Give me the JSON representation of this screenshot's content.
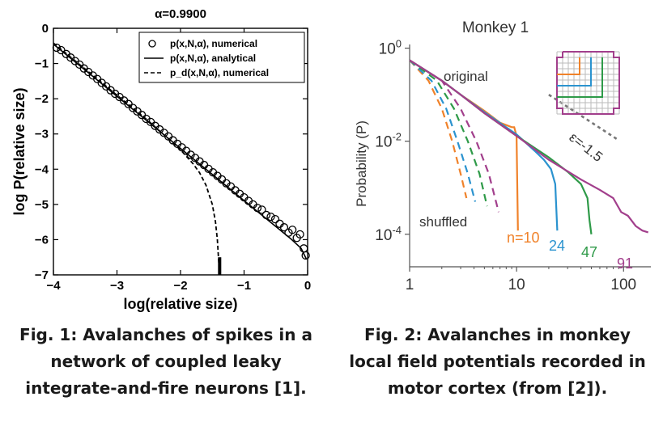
{
  "fig1": {
    "chart_data": {
      "type": "line",
      "title": "α=0.9900",
      "xlabel": "log(relative size)",
      "ylabel": "log P(relative size)",
      "xlim": [
        -4,
        0
      ],
      "ylim": [
        -7,
        0
      ],
      "xticks": [
        "−4",
        "−3",
        "−2",
        "−1",
        "0"
      ],
      "yticks": [
        "0",
        "−1",
        "−2",
        "−3",
        "−4",
        "−5",
        "−6",
        "−7"
      ],
      "legend_position": "top-right",
      "legend": [
        {
          "text": "p(x,N,α), numerical",
          "style": "circle"
        },
        {
          "text": "p(x,N,α), analytical",
          "style": "solid"
        },
        {
          "text": "p_d(x,N,α), numerical",
          "style": "dashed"
        }
      ],
      "series": [
        {
          "name": "p(x,N,α), numerical",
          "style": "circle",
          "x": [
            -3.95,
            -3.88,
            -3.8,
            -3.73,
            -3.66,
            -3.59,
            -3.52,
            -3.45,
            -3.38,
            -3.31,
            -3.24,
            -3.17,
            -3.1,
            -3.03,
            -2.96,
            -2.89,
            -2.82,
            -2.75,
            -2.68,
            -2.61,
            -2.54,
            -2.47,
            -2.4,
            -2.33,
            -2.26,
            -2.19,
            -2.12,
            -2.05,
            -1.98,
            -1.91,
            -1.84,
            -1.77,
            -1.7,
            -1.63,
            -1.56,
            -1.49,
            -1.42,
            -1.35,
            -1.28,
            -1.21,
            -1.14,
            -1.07,
            -1.0,
            -0.93,
            -0.86,
            -0.79,
            -0.72,
            -0.65,
            -0.58,
            -0.51,
            -0.44,
            -0.37,
            -0.3,
            -0.24,
            -0.17,
            -0.12,
            -0.06,
            -0.03
          ],
          "y": [
            -0.55,
            -0.62,
            -0.73,
            -0.83,
            -0.93,
            -1.03,
            -1.14,
            -1.24,
            -1.34,
            -1.44,
            -1.55,
            -1.65,
            -1.76,
            -1.86,
            -1.95,
            -2.05,
            -2.15,
            -2.26,
            -2.36,
            -2.46,
            -2.57,
            -2.66,
            -2.77,
            -2.87,
            -2.97,
            -3.07,
            -3.18,
            -3.28,
            -3.38,
            -3.48,
            -3.59,
            -3.68,
            -3.78,
            -3.88,
            -3.99,
            -4.09,
            -4.19,
            -4.29,
            -4.4,
            -4.49,
            -4.6,
            -4.7,
            -4.8,
            -4.9,
            -5.0,
            -5.1,
            -5.15,
            -5.3,
            -5.35,
            -5.42,
            -5.55,
            -5.65,
            -5.8,
            -5.72,
            -5.95,
            -5.85,
            -6.25,
            -6.45
          ]
        },
        {
          "name": "p(x,N,α), analytical",
          "style": "solid",
          "x": [
            -4.0,
            -3.5,
            -3.0,
            -2.5,
            -2.0,
            -1.5,
            -1.0,
            -0.5,
            -0.25,
            -0.1,
            -0.02
          ],
          "y": [
            -0.45,
            -1.19,
            -1.93,
            -2.67,
            -3.41,
            -4.15,
            -4.89,
            -5.63,
            -6.0,
            -6.25,
            -6.55
          ]
        },
        {
          "name": "p_d(x,N,α), numerical",
          "style": "dashed",
          "x": [
            -4.0,
            -3.5,
            -3.0,
            -2.5,
            -2.0,
            -1.8,
            -1.7,
            -1.6,
            -1.5,
            -1.45,
            -1.42,
            -1.4,
            -1.38
          ],
          "y": [
            -0.42,
            -1.16,
            -1.9,
            -2.64,
            -3.45,
            -3.85,
            -4.1,
            -4.45,
            -5.0,
            -5.5,
            -6.0,
            -6.6,
            -7.0
          ]
        }
      ]
    }
  },
  "fig2": {
    "chart_data": {
      "type": "line",
      "title": "Monkey 1",
      "xlabel": "",
      "ylabel": "Probability (P)",
      "xscale": "log",
      "yscale": "log",
      "xlim": [
        1,
        180
      ],
      "ylim": [
        2e-05,
        1.2
      ],
      "xticks": [
        "1",
        "10",
        "100"
      ],
      "yticks": [
        "10^0",
        "10^-2",
        "10^-4"
      ],
      "annotations": [
        "original",
        "shuffled",
        "ε=-1.5"
      ],
      "series": [
        {
          "name": "n=10",
          "color": "#f0822a",
          "style": "solid",
          "x": [
            1,
            2,
            3,
            5,
            7,
            9,
            9.5,
            10,
            10.3
          ],
          "y": [
            0.55,
            0.2,
            0.1,
            0.045,
            0.025,
            0.02,
            0.02,
            0.013,
            0.00012
          ]
        },
        {
          "name": "24",
          "color": "#2b93cf",
          "style": "solid",
          "x": [
            1,
            2,
            3,
            5,
            10,
            15,
            18,
            21,
            23,
            24
          ],
          "y": [
            0.55,
            0.2,
            0.1,
            0.042,
            0.014,
            0.006,
            0.004,
            0.0025,
            0.0012,
            0.00012
          ]
        },
        {
          "name": "47",
          "color": "#2e9a48",
          "style": "solid",
          "x": [
            1,
            2,
            3,
            5,
            10,
            20,
            30,
            40,
            46,
            48,
            50
          ],
          "y": [
            0.55,
            0.2,
            0.1,
            0.04,
            0.013,
            0.0045,
            0.0022,
            0.0012,
            0.0006,
            0.0002,
            0.0001
          ]
        },
        {
          "name": "91",
          "color": "#a23f8c",
          "style": "solid",
          "x": [
            1,
            2,
            3,
            5,
            10,
            20,
            40,
            60,
            80,
            95,
            110,
            130,
            150,
            170
          ],
          "y": [
            0.55,
            0.2,
            0.1,
            0.04,
            0.013,
            0.004,
            0.0015,
            0.0009,
            0.0006,
            0.0003,
            0.00025,
            0.00015,
            0.00012,
            0.00011
          ]
        },
        {
          "name": "n=10 shuffled",
          "color": "#f0822a",
          "style": "dashed",
          "x": [
            1,
            1.5,
            2,
            2.5,
            3,
            3.4
          ],
          "y": [
            0.55,
            0.2,
            0.05,
            0.01,
            0.002,
            0.0006
          ]
        },
        {
          "name": "24 shuffled",
          "color": "#2b93cf",
          "style": "dashed",
          "x": [
            1,
            1.6,
            2.2,
            2.8,
            3.5,
            4.1
          ],
          "y": [
            0.55,
            0.2,
            0.05,
            0.01,
            0.002,
            0.0005
          ]
        },
        {
          "name": "47 shuffled",
          "color": "#2e9a48",
          "style": "dashed",
          "x": [
            1,
            1.8,
            2.6,
            3.5,
            4.5,
            5.3
          ],
          "y": [
            0.55,
            0.2,
            0.05,
            0.01,
            0.002,
            0.0004
          ]
        },
        {
          "name": "91 shuffled",
          "color": "#a23f8c",
          "style": "dashed",
          "x": [
            1,
            2,
            3,
            4.2,
            5.5,
            6.8
          ],
          "y": [
            0.55,
            0.2,
            0.05,
            0.01,
            0.002,
            0.0003
          ]
        },
        {
          "name": "ε=-1.5",
          "color": "#777777",
          "style": "dotted",
          "x": [
            20,
            90
          ],
          "y": [
            0.1,
            0.0105
          ]
        }
      ],
      "series_labels": [
        {
          "text": "n=10",
          "color": "#f0822a"
        },
        {
          "text": "24",
          "color": "#2b93cf"
        },
        {
          "text": "47",
          "color": "#2e9a48"
        },
        {
          "text": "91",
          "color": "#a23f8c"
        }
      ],
      "inset_colors": [
        "#a23f8c",
        "#2e9a48",
        "#2b93cf",
        "#f0822a"
      ]
    }
  },
  "captions": {
    "fig1": [
      "Fig. 1: Avalanches of spikes in a",
      "network of coupled leaky",
      "integrate-and-fire neurons [1]."
    ],
    "fig2": [
      "Fig. 2: Avalanches in monkey",
      "local field potentials recorded in",
      "motor cortex (from [2])."
    ]
  }
}
